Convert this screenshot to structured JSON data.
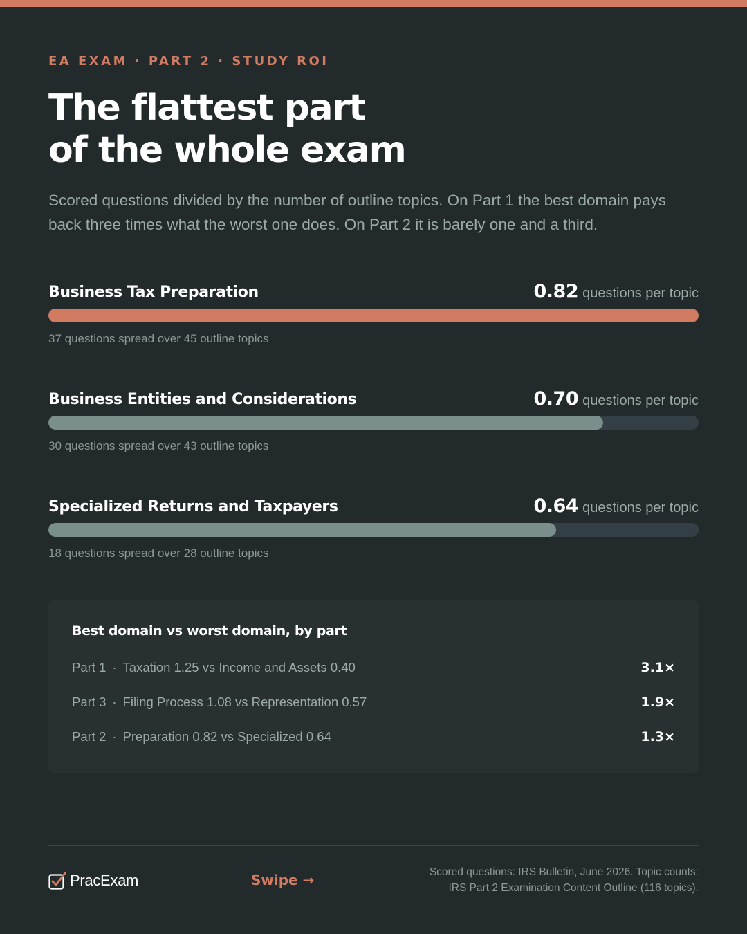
{
  "header": {
    "eyebrow": "EA EXAM · PART 2 · STUDY ROI",
    "title_line1": "The flattest part",
    "title_line2": "of the whole exam",
    "subtitle": "Scored questions divided by the number of outline topics. On Part 1 the best domain pays back three times what the worst one does. On Part 2 it is barely one and a third."
  },
  "chart_data": {
    "type": "bar",
    "orientation": "horizontal",
    "categories": [
      "Business Tax Preparation",
      "Business Entities and Considerations",
      "Specialized Returns and Taxpayers"
    ],
    "values": [
      0.82,
      0.7,
      0.64
    ],
    "value_labels": [
      "0.82",
      "0.70",
      "0.64"
    ],
    "unit": "questions per topic",
    "notes": [
      "37 questions spread over 45 outline topics",
      "30 questions spread over 43 outline topics",
      "18 questions spread over 28 outline topics"
    ],
    "xlim": [
      0,
      0.82
    ],
    "colors": {
      "highlight": "#d17b62",
      "default": "#7a8f8b",
      "track": "#333f44"
    }
  },
  "comparison": {
    "title": "Best domain vs worst domain, by part",
    "rows": [
      {
        "part": "Part 1",
        "desc": "Taxation 1.25 vs Income and Assets 0.40",
        "ratio": "3.1×"
      },
      {
        "part": "Part 3",
        "desc": "Filing Process 1.08 vs Representation 0.57",
        "ratio": "1.9×"
      },
      {
        "part": "Part 2",
        "desc": "Preparation 0.82 vs Specialized 0.64",
        "ratio": "1.3×"
      }
    ]
  },
  "footer": {
    "brand": "PracExam",
    "swipe": "Swipe →",
    "source_line1": "Scored questions: IRS Bulletin, June 2026. Topic counts:",
    "source_line2": "IRS Part 2 Examination Content Outline (116 topics)."
  }
}
